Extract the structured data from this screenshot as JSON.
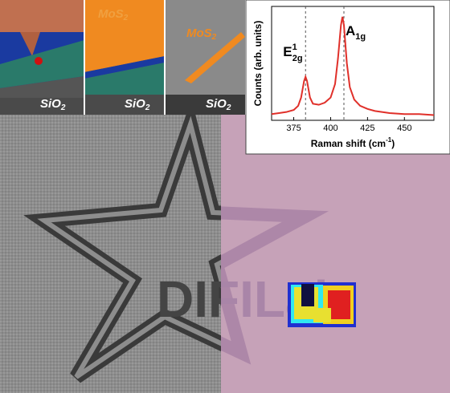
{
  "panels": [
    {
      "labels": [
        {
          "text": "SiO",
          "sub": "2"
        }
      ]
    },
    {
      "labels": [
        {
          "text": "MoS",
          "sub": "2"
        },
        {
          "text": "SiO",
          "sub": "2"
        }
      ]
    },
    {
      "labels": [
        {
          "text": "MoS",
          "sub": "2"
        },
        {
          "text": "SiO",
          "sub": "2"
        }
      ]
    }
  ],
  "logo_text": "DIFILab",
  "chart_data": {
    "type": "line",
    "ylabel": "Counts (arb. units)",
    "xlabel": {
      "text": "Raman shift (cm",
      "sup": "-1",
      "end": ")"
    },
    "x": [
      360,
      365,
      370,
      375,
      378,
      380,
      382,
      383,
      384,
      386,
      388,
      392,
      396,
      400,
      403,
      405,
      407,
      408,
      409,
      411,
      413,
      416,
      420,
      425,
      430,
      440,
      450,
      460,
      470
    ],
    "series": [
      {
        "color": "#e0302a",
        "values": [
          0.06,
          0.07,
          0.08,
          0.1,
          0.14,
          0.22,
          0.38,
          0.42,
          0.38,
          0.22,
          0.16,
          0.15,
          0.17,
          0.22,
          0.35,
          0.6,
          0.92,
          1.0,
          0.92,
          0.55,
          0.32,
          0.2,
          0.14,
          0.11,
          0.09,
          0.07,
          0.06,
          0.06,
          0.05
        ]
      }
    ],
    "xlim": [
      360,
      470
    ],
    "ylim": [
      0,
      1.1
    ],
    "xticks": [
      375,
      400,
      425,
      450
    ],
    "peaks": [
      {
        "base": "E",
        "sup": "1",
        "sub": "2g",
        "x": 383
      },
      {
        "base": "A",
        "sub": "1g",
        "x": 409
      }
    ]
  }
}
